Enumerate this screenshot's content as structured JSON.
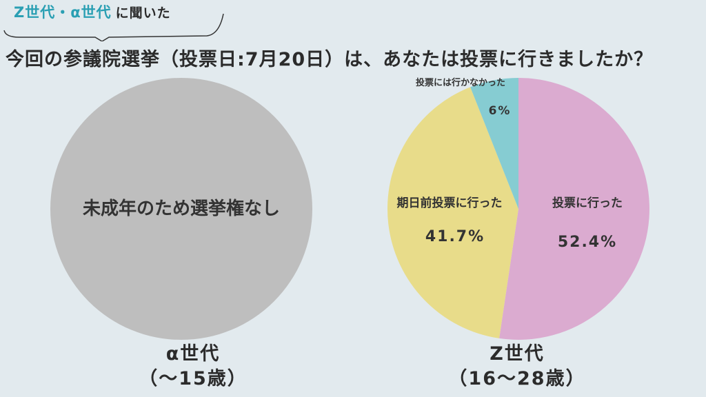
{
  "tagline": {
    "highlight": "Z世代・α世代",
    "rest": "に聞いた"
  },
  "title": "今回の参議院選挙（投票日:7月20日）は、あなたは投票に行きましたか？",
  "colors": {
    "background": "#e2eaee",
    "alpha_circle": "#bebebe",
    "voted": "#dbabd0",
    "early": "#e8dc8a",
    "not_voted": "#86ccd2"
  },
  "chart_data": [
    {
      "type": "pie",
      "group": "α世代",
      "age_range": "（〜15歳）",
      "note": "未成年のため選挙権なし",
      "values": []
    },
    {
      "type": "pie",
      "group": "Z世代",
      "age_range": "（16〜28歳）",
      "slices": [
        {
          "label": "投票に行った",
          "value": 52.4,
          "value_label": "52.4%"
        },
        {
          "label": "期日前投票に行った",
          "value": 41.7,
          "value_label": "41.7%"
        },
        {
          "label": "投票には行かなかった",
          "value": 6,
          "value_label": "6%"
        }
      ]
    }
  ]
}
